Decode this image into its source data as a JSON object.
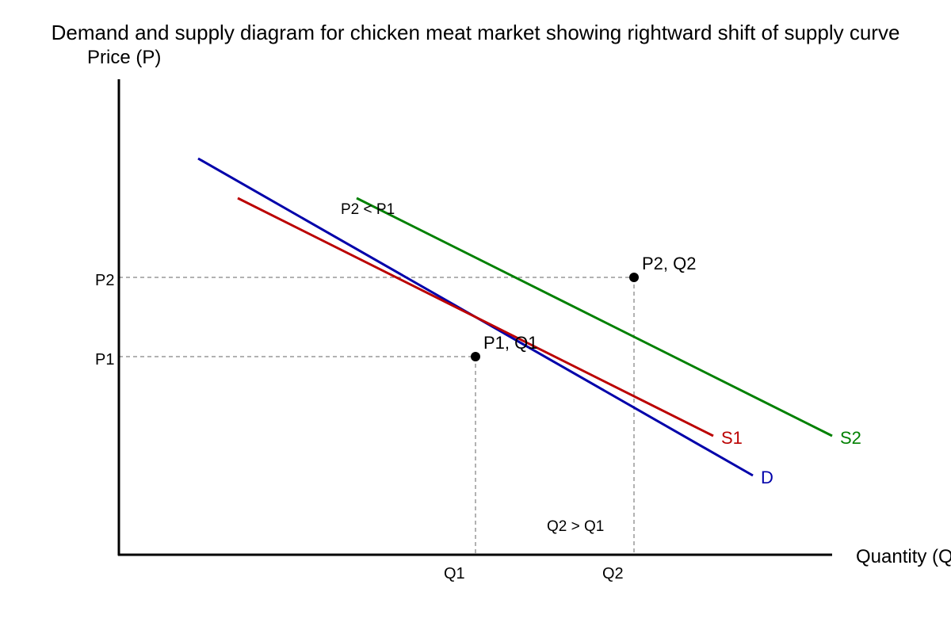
{
  "title": "Demand and supply diagram for chicken meat market showing rightward shift of supply curve",
  "axes": {
    "y_label": "Price (P)",
    "x_label": "Quantity (Q)",
    "y_ticks": [
      "P2",
      "P1"
    ],
    "x_ticks": [
      "Q1",
      "Q2"
    ]
  },
  "curves": [
    {
      "label": "D"
    },
    {
      "label": "S1"
    },
    {
      "label": "S2"
    }
  ],
  "points": [
    {
      "label": "P1, Q1"
    },
    {
      "label": "P2, Q2"
    }
  ],
  "annotations": [
    "P2 < P1",
    "Q2 > Q1"
  ]
}
